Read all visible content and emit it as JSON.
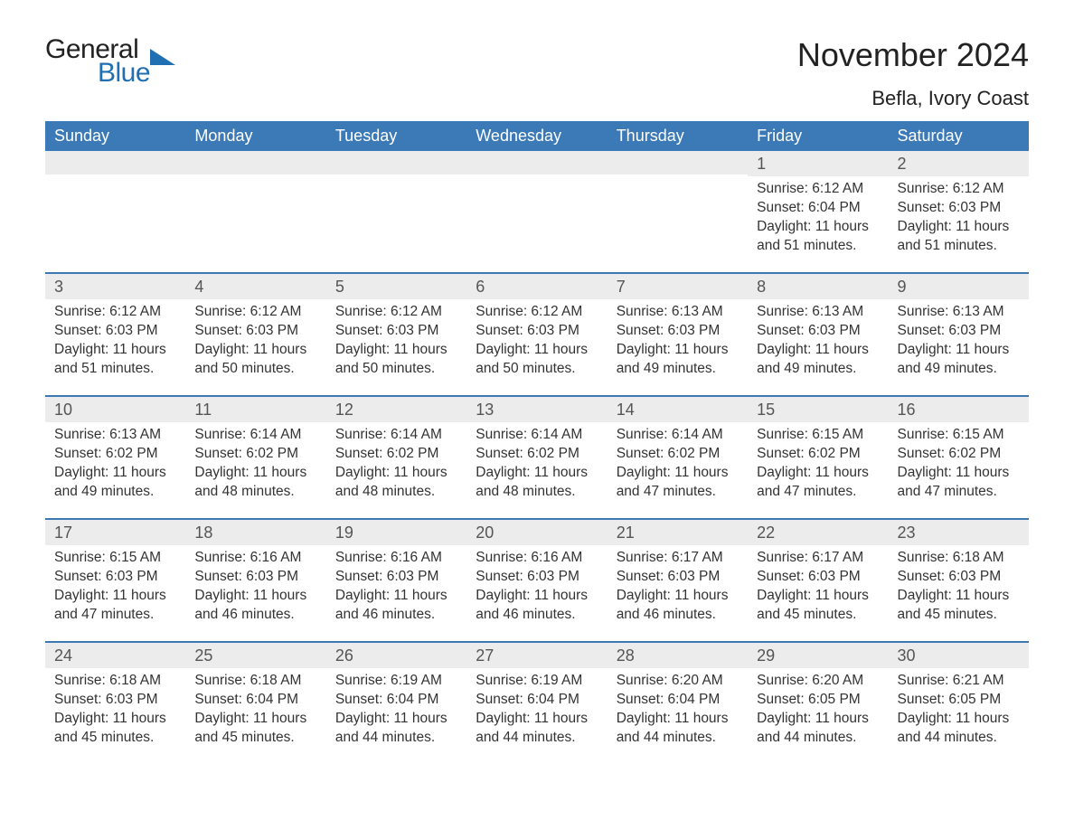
{
  "logo": {
    "word1": "General",
    "word2": "Blue"
  },
  "title": "November 2024",
  "subtitle": "Befla, Ivory Coast",
  "colors": {
    "header_bg": "#3b79b7",
    "header_text": "#ffffff",
    "row_divider": "#3b79b7",
    "daynum_bg": "#ececec",
    "logo_blue": "#1f6fb2",
    "text": "#333333",
    "background": "#ffffff"
  },
  "fonts": {
    "title_size_pt": 27,
    "subtitle_size_pt": 17,
    "header_size_pt": 14,
    "body_size_pt": 12
  },
  "day_names": [
    "Sunday",
    "Monday",
    "Tuesday",
    "Wednesday",
    "Thursday",
    "Friday",
    "Saturday"
  ],
  "weeks": [
    [
      {
        "day": null
      },
      {
        "day": null
      },
      {
        "day": null
      },
      {
        "day": null
      },
      {
        "day": null
      },
      {
        "day": "1",
        "sunrise": "Sunrise: 6:12 AM",
        "sunset": "Sunset: 6:04 PM",
        "daylight1": "Daylight: 11 hours",
        "daylight2": "and 51 minutes."
      },
      {
        "day": "2",
        "sunrise": "Sunrise: 6:12 AM",
        "sunset": "Sunset: 6:03 PM",
        "daylight1": "Daylight: 11 hours",
        "daylight2": "and 51 minutes."
      }
    ],
    [
      {
        "day": "3",
        "sunrise": "Sunrise: 6:12 AM",
        "sunset": "Sunset: 6:03 PM",
        "daylight1": "Daylight: 11 hours",
        "daylight2": "and 51 minutes."
      },
      {
        "day": "4",
        "sunrise": "Sunrise: 6:12 AM",
        "sunset": "Sunset: 6:03 PM",
        "daylight1": "Daylight: 11 hours",
        "daylight2": "and 50 minutes."
      },
      {
        "day": "5",
        "sunrise": "Sunrise: 6:12 AM",
        "sunset": "Sunset: 6:03 PM",
        "daylight1": "Daylight: 11 hours",
        "daylight2": "and 50 minutes."
      },
      {
        "day": "6",
        "sunrise": "Sunrise: 6:12 AM",
        "sunset": "Sunset: 6:03 PM",
        "daylight1": "Daylight: 11 hours",
        "daylight2": "and 50 minutes."
      },
      {
        "day": "7",
        "sunrise": "Sunrise: 6:13 AM",
        "sunset": "Sunset: 6:03 PM",
        "daylight1": "Daylight: 11 hours",
        "daylight2": "and 49 minutes."
      },
      {
        "day": "8",
        "sunrise": "Sunrise: 6:13 AM",
        "sunset": "Sunset: 6:03 PM",
        "daylight1": "Daylight: 11 hours",
        "daylight2": "and 49 minutes."
      },
      {
        "day": "9",
        "sunrise": "Sunrise: 6:13 AM",
        "sunset": "Sunset: 6:03 PM",
        "daylight1": "Daylight: 11 hours",
        "daylight2": "and 49 minutes."
      }
    ],
    [
      {
        "day": "10",
        "sunrise": "Sunrise: 6:13 AM",
        "sunset": "Sunset: 6:02 PM",
        "daylight1": "Daylight: 11 hours",
        "daylight2": "and 49 minutes."
      },
      {
        "day": "11",
        "sunrise": "Sunrise: 6:14 AM",
        "sunset": "Sunset: 6:02 PM",
        "daylight1": "Daylight: 11 hours",
        "daylight2": "and 48 minutes."
      },
      {
        "day": "12",
        "sunrise": "Sunrise: 6:14 AM",
        "sunset": "Sunset: 6:02 PM",
        "daylight1": "Daylight: 11 hours",
        "daylight2": "and 48 minutes."
      },
      {
        "day": "13",
        "sunrise": "Sunrise: 6:14 AM",
        "sunset": "Sunset: 6:02 PM",
        "daylight1": "Daylight: 11 hours",
        "daylight2": "and 48 minutes."
      },
      {
        "day": "14",
        "sunrise": "Sunrise: 6:14 AM",
        "sunset": "Sunset: 6:02 PM",
        "daylight1": "Daylight: 11 hours",
        "daylight2": "and 47 minutes."
      },
      {
        "day": "15",
        "sunrise": "Sunrise: 6:15 AM",
        "sunset": "Sunset: 6:02 PM",
        "daylight1": "Daylight: 11 hours",
        "daylight2": "and 47 minutes."
      },
      {
        "day": "16",
        "sunrise": "Sunrise: 6:15 AM",
        "sunset": "Sunset: 6:02 PM",
        "daylight1": "Daylight: 11 hours",
        "daylight2": "and 47 minutes."
      }
    ],
    [
      {
        "day": "17",
        "sunrise": "Sunrise: 6:15 AM",
        "sunset": "Sunset: 6:03 PM",
        "daylight1": "Daylight: 11 hours",
        "daylight2": "and 47 minutes."
      },
      {
        "day": "18",
        "sunrise": "Sunrise: 6:16 AM",
        "sunset": "Sunset: 6:03 PM",
        "daylight1": "Daylight: 11 hours",
        "daylight2": "and 46 minutes."
      },
      {
        "day": "19",
        "sunrise": "Sunrise: 6:16 AM",
        "sunset": "Sunset: 6:03 PM",
        "daylight1": "Daylight: 11 hours",
        "daylight2": "and 46 minutes."
      },
      {
        "day": "20",
        "sunrise": "Sunrise: 6:16 AM",
        "sunset": "Sunset: 6:03 PM",
        "daylight1": "Daylight: 11 hours",
        "daylight2": "and 46 minutes."
      },
      {
        "day": "21",
        "sunrise": "Sunrise: 6:17 AM",
        "sunset": "Sunset: 6:03 PM",
        "daylight1": "Daylight: 11 hours",
        "daylight2": "and 46 minutes."
      },
      {
        "day": "22",
        "sunrise": "Sunrise: 6:17 AM",
        "sunset": "Sunset: 6:03 PM",
        "daylight1": "Daylight: 11 hours",
        "daylight2": "and 45 minutes."
      },
      {
        "day": "23",
        "sunrise": "Sunrise: 6:18 AM",
        "sunset": "Sunset: 6:03 PM",
        "daylight1": "Daylight: 11 hours",
        "daylight2": "and 45 minutes."
      }
    ],
    [
      {
        "day": "24",
        "sunrise": "Sunrise: 6:18 AM",
        "sunset": "Sunset: 6:03 PM",
        "daylight1": "Daylight: 11 hours",
        "daylight2": "and 45 minutes."
      },
      {
        "day": "25",
        "sunrise": "Sunrise: 6:18 AM",
        "sunset": "Sunset: 6:04 PM",
        "daylight1": "Daylight: 11 hours",
        "daylight2": "and 45 minutes."
      },
      {
        "day": "26",
        "sunrise": "Sunrise: 6:19 AM",
        "sunset": "Sunset: 6:04 PM",
        "daylight1": "Daylight: 11 hours",
        "daylight2": "and 44 minutes."
      },
      {
        "day": "27",
        "sunrise": "Sunrise: 6:19 AM",
        "sunset": "Sunset: 6:04 PM",
        "daylight1": "Daylight: 11 hours",
        "daylight2": "and 44 minutes."
      },
      {
        "day": "28",
        "sunrise": "Sunrise: 6:20 AM",
        "sunset": "Sunset: 6:04 PM",
        "daylight1": "Daylight: 11 hours",
        "daylight2": "and 44 minutes."
      },
      {
        "day": "29",
        "sunrise": "Sunrise: 6:20 AM",
        "sunset": "Sunset: 6:05 PM",
        "daylight1": "Daylight: 11 hours",
        "daylight2": "and 44 minutes."
      },
      {
        "day": "30",
        "sunrise": "Sunrise: 6:21 AM",
        "sunset": "Sunset: 6:05 PM",
        "daylight1": "Daylight: 11 hours",
        "daylight2": "and 44 minutes."
      }
    ]
  ]
}
